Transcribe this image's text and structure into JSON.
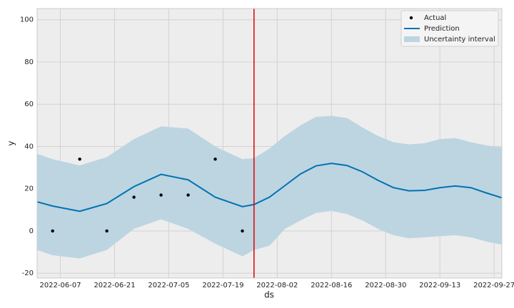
{
  "chart_data": {
    "type": "forecast",
    "xlabel": "ds",
    "ylabel": "y",
    "xlim": [
      "2022-06-01",
      "2022-09-29"
    ],
    "xticks": [
      "2022-06-07",
      "2022-06-21",
      "2022-07-05",
      "2022-07-19",
      "2022-08-02",
      "2022-08-16",
      "2022-08-30",
      "2022-09-13",
      "2022-09-27"
    ],
    "ylim": [
      -22.3,
      105.3
    ],
    "yticks": [
      -20,
      0,
      20,
      40,
      60,
      80,
      100
    ],
    "grid": true,
    "legend": "upper right",
    "changepoint": {
      "x": "2022-07-27",
      "color": "#e00000"
    },
    "x": [
      "2022-06-01",
      "2022-06-05",
      "2022-06-12",
      "2022-06-19",
      "2022-06-26",
      "2022-07-03",
      "2022-07-10",
      "2022-07-17",
      "2022-07-24",
      "2022-07-27",
      "2022-07-31",
      "2022-08-04",
      "2022-08-08",
      "2022-08-12",
      "2022-08-16",
      "2022-08-20",
      "2022-08-24",
      "2022-08-28",
      "2022-09-01",
      "2022-09-05",
      "2022-09-09",
      "2022-09-13",
      "2022-09-17",
      "2022-09-21",
      "2022-09-25",
      "2022-09-29"
    ],
    "series": [
      {
        "name": "Actual",
        "color": "#000000",
        "kind": "points",
        "x": [
          "2022-06-05",
          "2022-06-12",
          "2022-06-19",
          "2022-06-26",
          "2022-07-03",
          "2022-07-10",
          "2022-07-17",
          "2022-07-24"
        ],
        "values": [
          0,
          34,
          0,
          16,
          17,
          17,
          34,
          0
        ]
      },
      {
        "name": "Prediction",
        "color": "#0072b2",
        "kind": "line",
        "values": [
          13.8,
          11.8,
          9.3,
          13,
          21,
          26.8,
          24.2,
          16,
          11.5,
          12.5,
          16,
          21.5,
          27,
          30.8,
          32,
          31,
          28,
          24,
          20.5,
          19,
          19.2,
          20.5,
          21.3,
          20.5,
          18,
          15.7
        ]
      },
      {
        "name": "Uncertainty interval",
        "color": "#bcd5e1",
        "kind": "band",
        "upper": [
          36.5,
          34,
          31,
          35,
          43.5,
          49.5,
          48.5,
          40,
          34,
          34.5,
          39,
          45,
          50,
          54,
          54.5,
          53.5,
          49,
          45,
          42,
          41,
          41.5,
          43.5,
          44,
          42,
          40.5,
          39.5
        ],
        "lower": [
          -9,
          -11.5,
          -13,
          -9,
          1,
          5.5,
          1,
          -6,
          -12,
          -9,
          -7,
          1,
          5,
          8.5,
          9.5,
          8,
          5,
          1,
          -2,
          -3.5,
          -3,
          -2.5,
          -2,
          -3,
          -5,
          -6.5
        ]
      }
    ]
  }
}
